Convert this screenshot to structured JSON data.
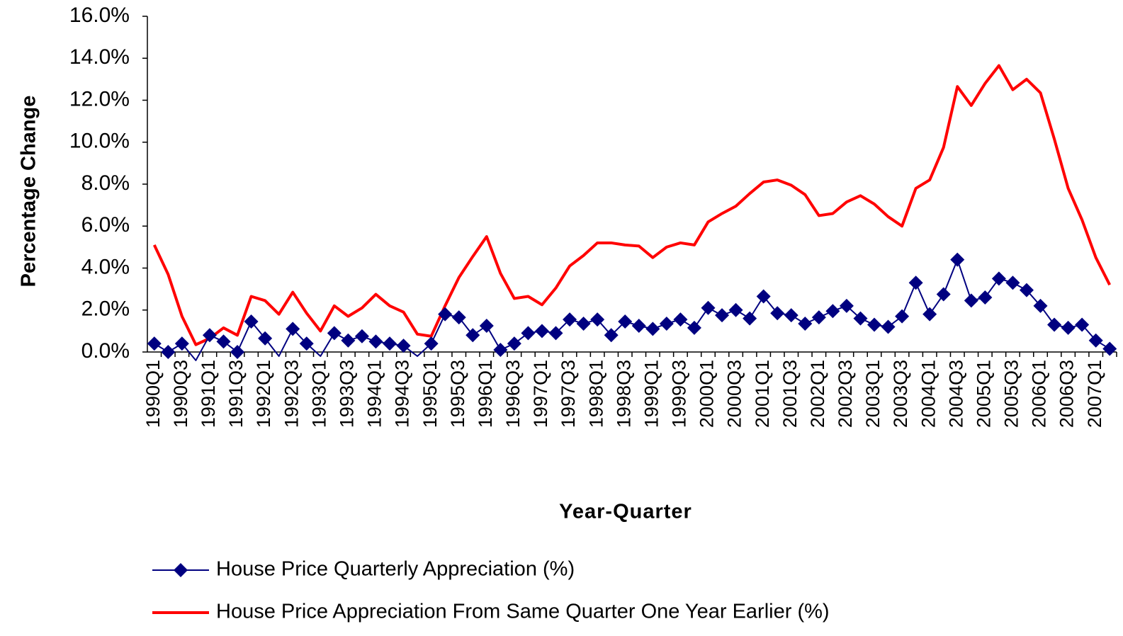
{
  "chart_data": {
    "type": "line",
    "y_axis_label": "Percentage Change",
    "x_axis_label": "Year-Quarter",
    "categories": [
      "1990Q1",
      null,
      "1990Q3",
      null,
      "1991Q1",
      null,
      "1991Q3",
      null,
      "1992Q1",
      null,
      "1992Q3",
      null,
      "1993Q1",
      null,
      "1993Q3",
      null,
      "1994Q1",
      null,
      "1994Q3",
      null,
      "1995Q1",
      null,
      "1995Q3",
      null,
      "1996Q1",
      null,
      "1996Q3",
      null,
      "1997Q1",
      null,
      "1997Q3",
      null,
      "1998Q1",
      null,
      "1998Q3",
      null,
      "1999Q1",
      null,
      "1999Q3",
      null,
      "2000Q1",
      null,
      "2000Q3",
      null,
      "2001Q1",
      null,
      "2001Q3",
      null,
      "2002Q1",
      null,
      "2002Q3",
      null,
      "2003Q1",
      null,
      "2003Q3",
      null,
      "2004Q1",
      null,
      "2004Q3",
      null,
      "2005Q1",
      null,
      "2005Q3",
      null,
      "2006Q1",
      null,
      "2006Q3",
      null,
      "2007Q1",
      null
    ],
    "series": [
      {
        "name": "House Price Quarterly Appreciation (%)",
        "color": "#000080",
        "marker": "diamond",
        "values": [
          0.4,
          0.0,
          0.4,
          -0.4,
          0.8,
          0.5,
          0.0,
          1.45,
          0.65,
          -0.2,
          1.1,
          0.4,
          -0.2,
          0.9,
          0.55,
          0.75,
          0.5,
          0.4,
          0.3,
          -0.2,
          0.4,
          1.8,
          1.65,
          0.8,
          1.25,
          0.1,
          0.4,
          0.9,
          1.0,
          0.9,
          1.55,
          1.35,
          1.55,
          0.8,
          1.45,
          1.25,
          1.1,
          1.35,
          1.55,
          1.15,
          2.1,
          1.75,
          2.0,
          1.6,
          2.65,
          1.85,
          1.75,
          1.35,
          1.65,
          1.95,
          2.2,
          1.6,
          1.3,
          1.2,
          1.7,
          3.3,
          1.8,
          2.75,
          4.4,
          2.45,
          2.6,
          3.5,
          3.3,
          2.95,
          2.2,
          1.3,
          1.15,
          1.3,
          0.55,
          0.15
        ]
      },
      {
        "name": "House Price Appreciation From Same Quarter One Year Earlier (%)",
        "color": "#ff0000",
        "marker": "none",
        "values": [
          5.1,
          3.7,
          1.7,
          0.35,
          0.65,
          1.15,
          0.8,
          2.65,
          2.45,
          1.8,
          2.85,
          1.85,
          1.0,
          2.2,
          1.7,
          2.1,
          2.75,
          2.2,
          1.9,
          0.85,
          0.75,
          2.2,
          3.55,
          4.55,
          5.5,
          3.75,
          2.55,
          2.65,
          2.25,
          3.05,
          4.1,
          4.6,
          5.2,
          5.2,
          5.1,
          5.05,
          4.5,
          5.0,
          5.2,
          5.1,
          6.2,
          6.6,
          6.95,
          7.55,
          8.1,
          8.2,
          7.95,
          7.5,
          6.5,
          6.6,
          7.15,
          7.45,
          7.05,
          6.45,
          6.0,
          7.8,
          8.2,
          9.75,
          12.65,
          11.75,
          12.8,
          13.65,
          12.5,
          13.0,
          12.35,
          10.15,
          7.8,
          6.3,
          4.5,
          3.2
        ]
      }
    ],
    "ylim": [
      0,
      16
    ],
    "yticks": [
      {
        "value": 0,
        "label": "0.0%"
      },
      {
        "value": 2,
        "label": "2.0%"
      },
      {
        "value": 4,
        "label": "4.0%"
      },
      {
        "value": 6,
        "label": "6.0%"
      },
      {
        "value": 8,
        "label": "8.0%"
      },
      {
        "value": 10,
        "label": "10.0%"
      },
      {
        "value": 12,
        "label": "12.0%"
      },
      {
        "value": 14,
        "label": "14.0%"
      },
      {
        "value": 16,
        "label": "16.0%"
      }
    ],
    "grid": false,
    "legend": "bottom"
  }
}
